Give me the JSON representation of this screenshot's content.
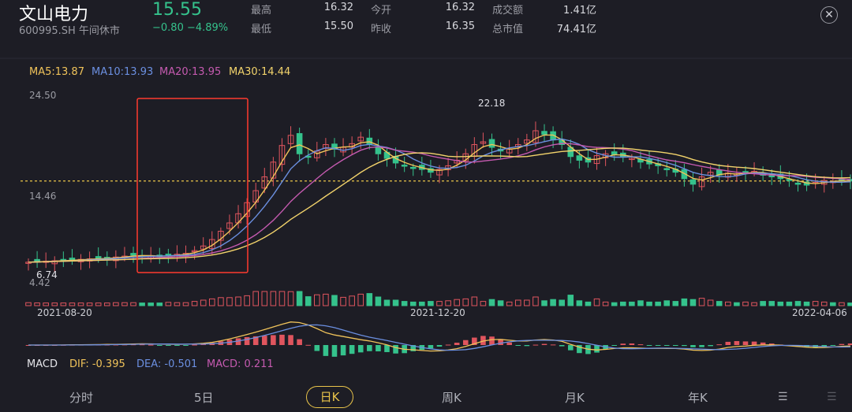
{
  "header": {
    "name": "文山电力",
    "code": "600995.SH 午间休市",
    "price": "15.55",
    "change": "−0.80  −4.89%",
    "stats": [
      {
        "label": "最高",
        "value": "16.32"
      },
      {
        "label": "最低",
        "value": "15.50"
      },
      {
        "label": "今开",
        "value": "16.32"
      },
      {
        "label": "昨收",
        "value": "16.35"
      },
      {
        "label": "成交额",
        "value": "1.41亿"
      },
      {
        "label": "总市值",
        "value": "74.41亿"
      }
    ],
    "close_icon": "close-icon"
  },
  "ma_legend": {
    "ma5": "MA5:13.87",
    "ma10": "MA10:13.93",
    "ma20": "MA20:13.95",
    "ma30": "MA30:14.44"
  },
  "macd_legend": {
    "label": "MACD",
    "dif": "DIF: -0.395",
    "dea": "DEA: -0.501",
    "macd": "MACD: 0.211"
  },
  "tabs": [
    "分时",
    "5日",
    "日K",
    "周K",
    "月K",
    "年K"
  ],
  "active_tab": "日K",
  "colors": {
    "up": "#e0555e",
    "down": "#35c28c",
    "ma5": "#f0c35a",
    "ma10": "#6b8fe0",
    "ma20": "#c55ab0",
    "ma30": "#f2d36b",
    "highlight": "#ff3b2f"
  },
  "chart_data": {
    "type": "candlestick",
    "y_axis_labels": [
      "24.50",
      "14.46",
      "4.42"
    ],
    "ylim": [
      4.42,
      24.5
    ],
    "x_labels": [
      "2021-08-20",
      "2021-12-20",
      "2022-04-06"
    ],
    "annotations": {
      "high": "22.18",
      "low": "6.74"
    },
    "current_price_line": 15.55,
    "series": {
      "close": [
        6.74,
        6.8,
        6.85,
        6.9,
        6.95,
        7.0,
        7.05,
        7.1,
        7.15,
        7.2,
        7.3,
        7.4,
        7.5,
        7.45,
        7.4,
        7.35,
        7.5,
        7.6,
        7.7,
        8.0,
        8.5,
        9.2,
        10.1,
        11.0,
        12.0,
        13.2,
        14.5,
        16.0,
        17.6,
        19.4,
        20.5,
        18.5,
        18.2,
        18.8,
        19.5,
        19.0,
        19.2,
        19.6,
        20.3,
        19.5,
        18.5,
        18.0,
        17.5,
        17.2,
        17.0,
        16.8,
        16.5,
        16.8,
        17.2,
        17.8,
        18.5,
        19.5,
        19.8,
        19.2,
        18.8,
        19.0,
        19.5,
        20.0,
        21.0,
        20.6,
        20.0,
        19.5,
        18.2,
        17.8,
        17.6,
        18.3,
        18.5,
        18.4,
        18.2,
        18.0,
        17.6,
        17.4,
        17.2,
        16.8,
        16.5,
        15.8,
        15.2,
        16.0,
        16.5,
        16.2,
        16.4,
        16.3,
        16.5,
        16.6,
        16.3,
        16.0,
        15.8,
        15.6,
        15.3,
        15.1,
        15.4,
        15.6,
        15.5,
        15.6,
        15.55
      ]
    }
  }
}
